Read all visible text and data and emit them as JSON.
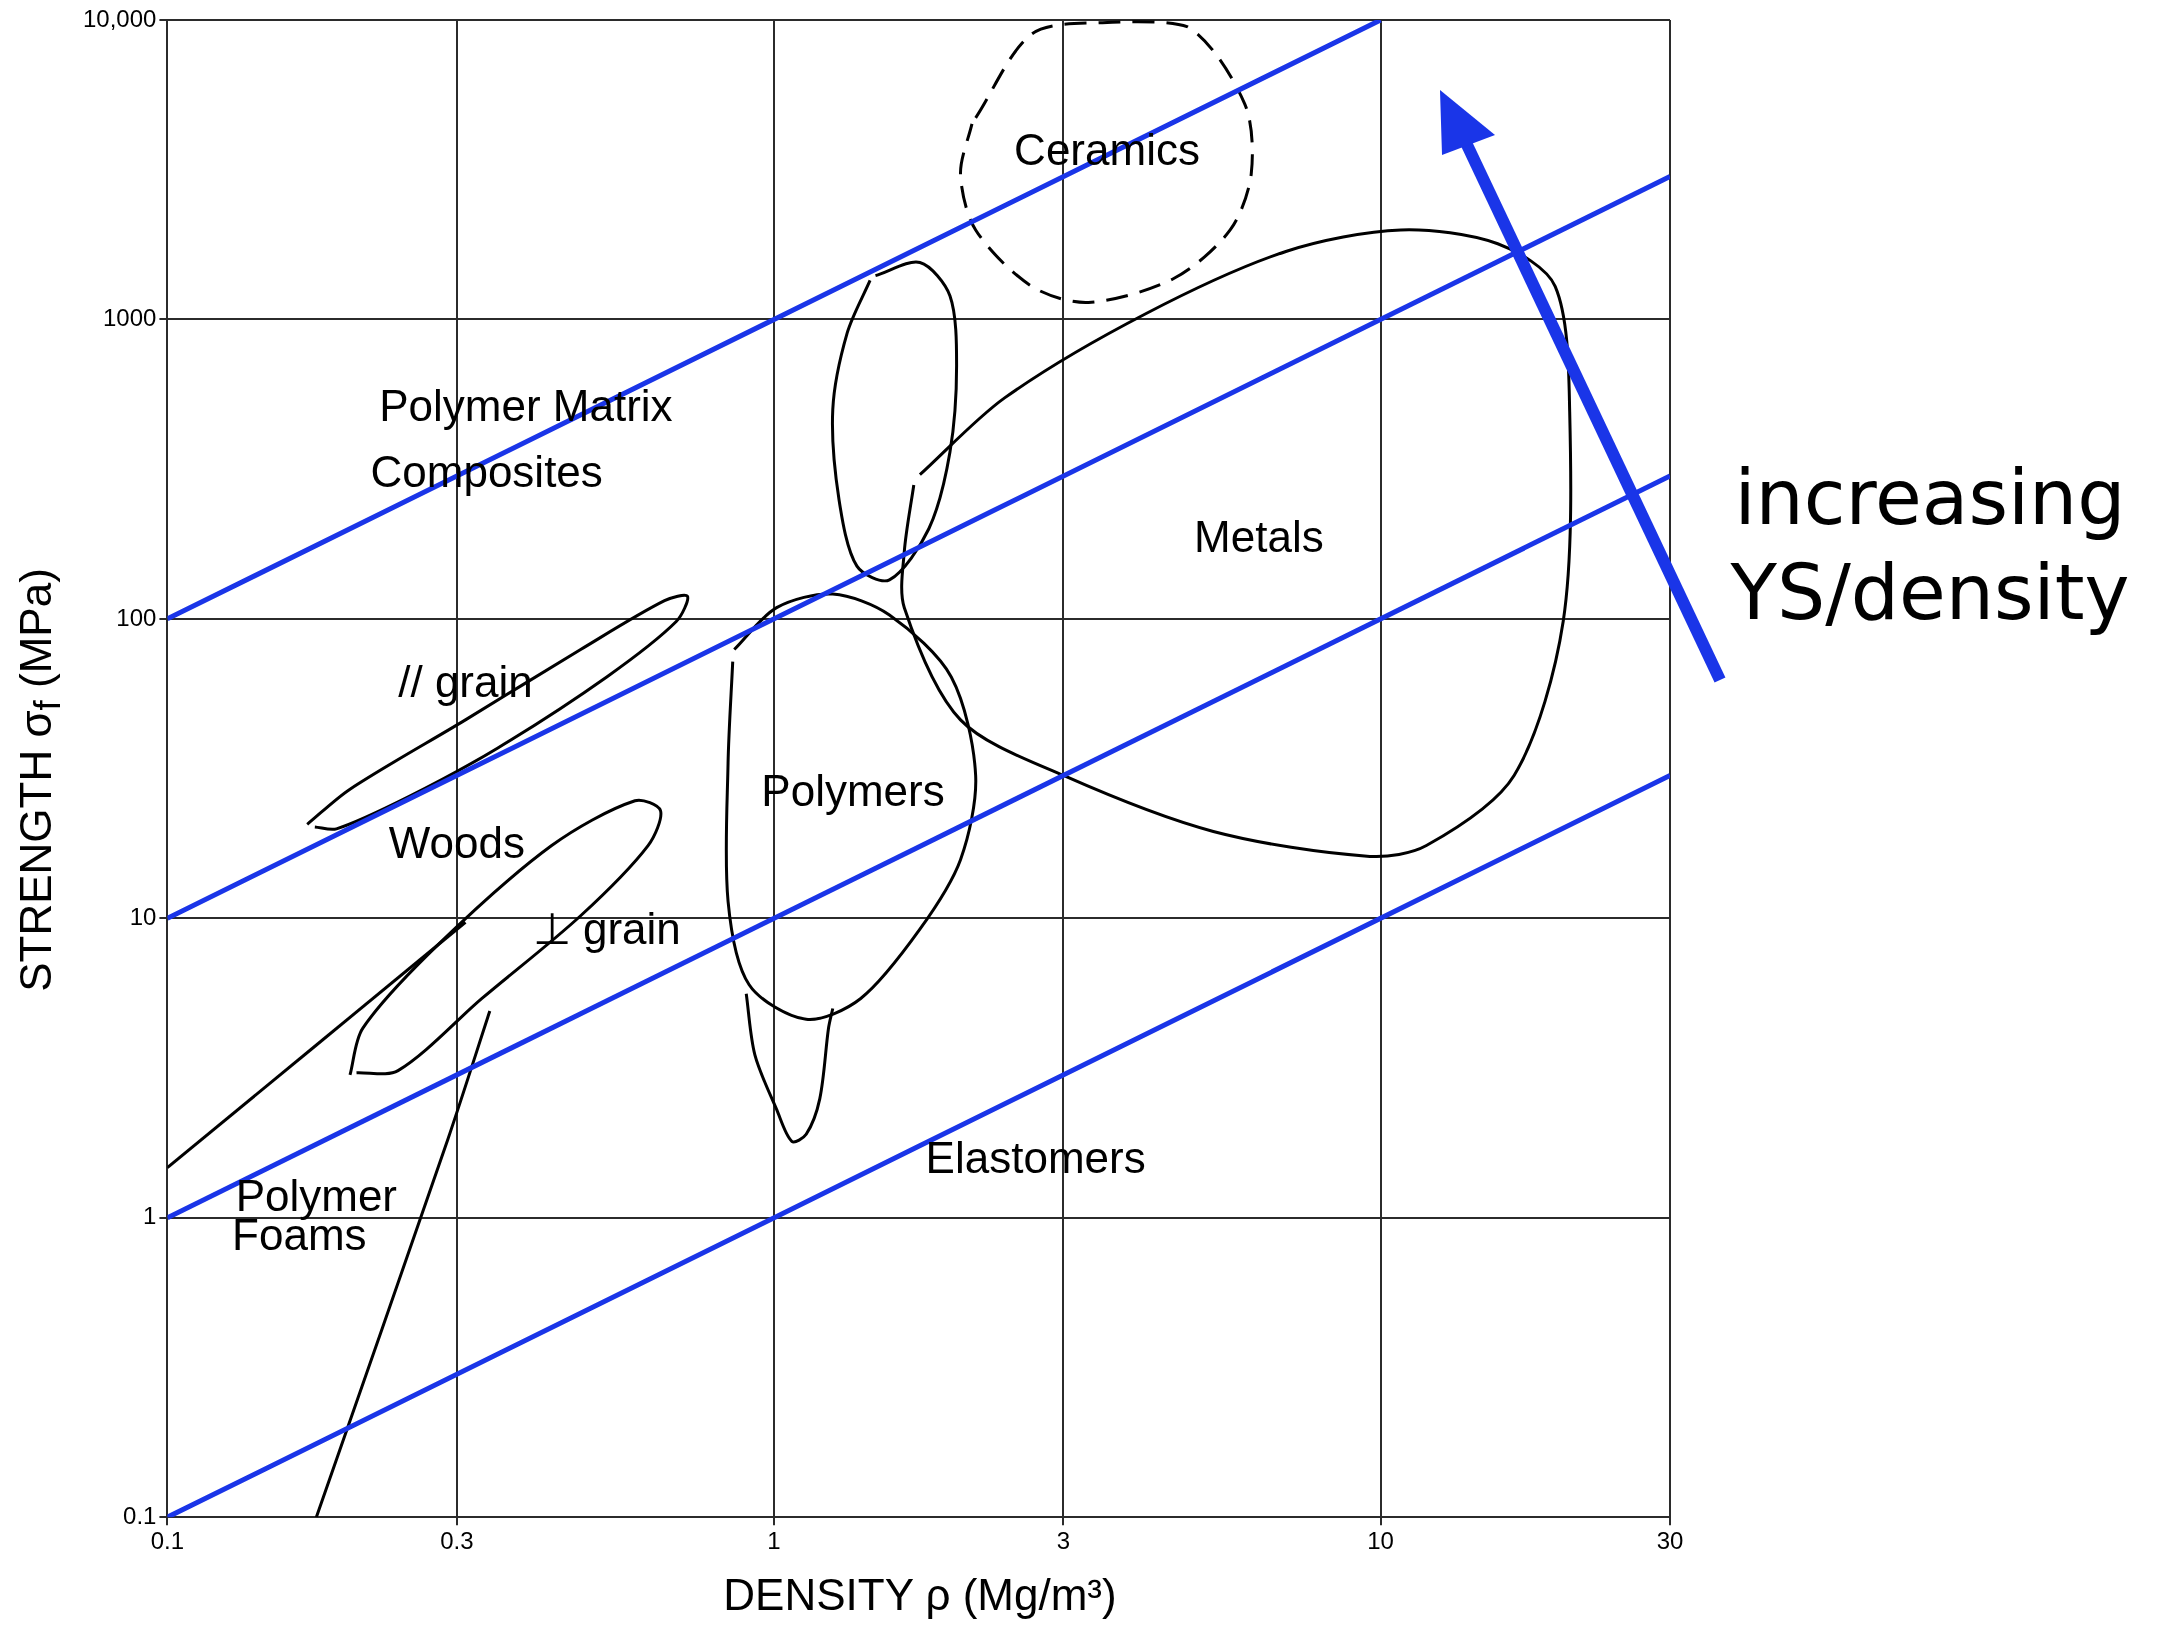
{
  "chart_data": {
    "type": "line",
    "xlabel": "DENSITY ρ (Mg/m³)",
    "ylabel": "STRENGTH σ$_{f}$ (MPa)",
    "log": "xy",
    "grid": true,
    "legend": false,
    "marker": "none",
    "xlim": [
      0.1,
      30
    ],
    "xticks": [
      0.1,
      0.3,
      1,
      3,
      10,
      30
    ],
    "ylim": [
      0.1,
      10000
    ],
    "yticks": [
      0.1,
      1,
      10,
      100,
      1000,
      {
        "value": 10000,
        "label": "10,000"
      }
    ],
    "series": [
      {
        "color": "#000000",
        "line_style": "dashed",
        "x": [
          2.15,
          2.66,
          3.48,
          4.81,
          5.97,
          6.12,
          5.65,
          4.56,
          3.3,
          2.66,
          2.15,
          2.03,
          2.12
        ],
        "values": [
          4710,
          8980,
          9800,
          9480,
          5250,
          3060,
          1990,
          1370,
          1140,
          1290,
          1990,
          3060,
          4500
        ]
      },
      {
        "color": "#000000",
        "line_style": "solid",
        "x": [
          1.47,
          1.74,
          1.95,
          2.0,
          1.95,
          1.8,
          1.55,
          1.37,
          1.28,
          1.25,
          1.32,
          1.44
        ],
        "values": [
          1400,
          1550,
          1200,
          700,
          360,
          200,
          135,
          150,
          250,
          500,
          900,
          1350
        ]
      },
      {
        "color": "#000000",
        "line_style": "solid",
        "x": [
          1.74,
          2.4,
          4.1,
          7.0,
          10.8,
          15.6,
          19.4,
          20.5,
          20,
          16.6,
          11.9,
          9.6,
          5.3,
          3.0,
          2.03,
          1.64,
          1.64,
          1.7
        ],
        "values": [
          303,
          547,
          1045,
          1690,
          1990,
          1790,
          1290,
          492,
          98,
          30,
          17.5,
          16.1,
          19.5,
          30,
          46,
          109,
          168,
          280
        ]
      },
      {
        "color": "#000000",
        "line_style": "solid",
        "x": [
          0.86,
          1.01,
          1.25,
          1.55,
          1.96,
          2.15,
          2.03,
          1.74,
          1.39,
          1.13,
          0.91,
          0.84,
          0.84,
          0.855
        ],
        "values": [
          79,
          109,
          121,
          103,
          64,
          30,
          15.7,
          9.2,
          5.4,
          4.6,
          6.0,
          11.4,
          33,
          72
        ]
      },
      {
        "color": "#000000",
        "line_style": "solid",
        "x": [
          0.9,
          0.93,
          1.01,
          1.07,
          1.13,
          1.19,
          1.23,
          1.25
        ],
        "values": [
          5.6,
          3.5,
          2.3,
          1.8,
          1.9,
          2.5,
          4.3,
          5.0
        ]
      },
      {
        "color": "#000000",
        "line_style": "solid",
        "x": [
          0.17,
          0.2,
          0.31,
          0.48,
          0.66,
          0.72,
          0.69,
          0.53,
          0.35,
          0.25,
          0.19,
          0.175
        ],
        "values": [
          20.6,
          27,
          46,
          79,
          115,
          119,
          98,
          64,
          37,
          25.5,
          19.9,
          20.2
        ]
      },
      {
        "color": "#000000",
        "line_style": "solid",
        "x": [
          0.2,
          0.21,
          0.28,
          0.43,
          0.59,
          0.65,
          0.62,
          0.48,
          0.33,
          0.24,
          0.205
        ],
        "values": [
          3.0,
          4.3,
          8.2,
          17.5,
          24.7,
          22.9,
          17.5,
          10.2,
          5.4,
          3.1,
          3.05
        ]
      },
      {
        "color": "#000000",
        "line_style": "solid",
        "x": [
          0.1,
          0.31
        ],
        "values": [
          1.47,
          9.7
        ]
      },
      {
        "color": "#000000",
        "line_style": "solid",
        "x": [
          0.34,
          0.29,
          0.176
        ],
        "values": [
          4.9,
          1.83,
          0.1
        ]
      },
      {
        "color": "#1a35e8",
        "line_style": "solid",
        "x": [
          0.1,
          10
        ],
        "values": [
          100,
          10000
        ]
      },
      {
        "color": "#1a35e8",
        "line_style": "solid",
        "x": [
          0.1,
          30
        ],
        "values": [
          10,
          3000
        ]
      },
      {
        "color": "#1a35e8",
        "line_style": "solid",
        "x": [
          0.1,
          30
        ],
        "values": [
          1,
          300
        ]
      },
      {
        "color": "#1a35e8",
        "line_style": "solid",
        "x": [
          0.1,
          30
        ],
        "values": [
          0.1,
          30
        ]
      }
    ],
    "annotations": [
      "Ceramics",
      "Polymer Matrix",
      "Composites",
      "Metals",
      "// grain",
      "Woods",
      "⊥ grain",
      "Polymers",
      "Elastomers",
      "Polymer",
      "Foams",
      "increasing YS/density"
    ]
  }
}
